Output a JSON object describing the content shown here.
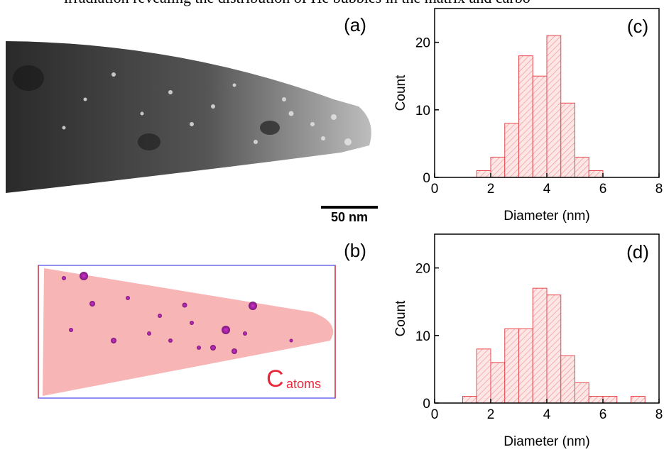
{
  "caption": "irradiation revealing the distribution of He bubbles in the matrix and carbo",
  "image_panels": [
    {
      "label": "(a)",
      "scale_bar": "50 nm"
    },
    {
      "label": "(b)",
      "element": "C",
      "note": "atoms"
    }
  ],
  "chart_data": [
    {
      "type": "histogram",
      "panel_label": "(c)",
      "x_label": "Diameter (nm)",
      "y_label": "Count",
      "bins": [
        1.5,
        2.0,
        2.5,
        3.0,
        3.5,
        4.0,
        4.5,
        5.0,
        5.5,
        6.0
      ],
      "values": [
        1,
        3,
        8,
        18,
        15,
        21,
        11,
        3,
        1
      ],
      "color": "#e8484f",
      "xlim": [
        0,
        8
      ],
      "xticks": [
        0,
        2,
        4,
        6,
        8
      ],
      "ylim": [
        0,
        25
      ],
      "yticks": [
        0,
        10,
        20
      ]
    },
    {
      "type": "histogram",
      "panel_label": "(d)",
      "x_label": "Diameter (nm)",
      "y_label": "Count",
      "bins": [
        1.0,
        1.5,
        2.0,
        2.5,
        3.0,
        3.5,
        4.0,
        4.5,
        5.0,
        5.5,
        6.0,
        6.5,
        7.0,
        7.5
      ],
      "values": [
        1,
        8,
        6,
        11,
        11,
        17,
        16,
        7,
        3,
        1,
        1,
        0,
        1
      ],
      "color": "#e8484f",
      "xlim": [
        0,
        8
      ],
      "xticks": [
        0,
        2,
        4,
        6,
        8
      ],
      "ylim": [
        0,
        25
      ],
      "yticks": [
        0,
        10,
        20
      ]
    }
  ]
}
